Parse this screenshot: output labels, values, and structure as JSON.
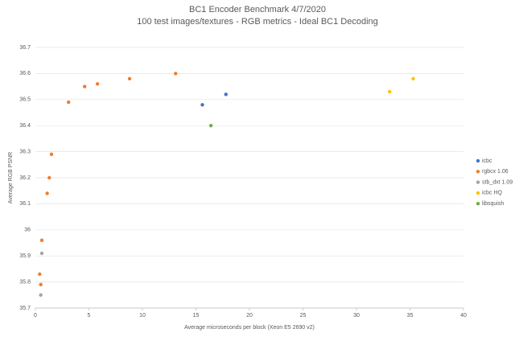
{
  "chart_data": {
    "type": "scatter",
    "title": "BC1 Encoder Benchmark 4/7/2020",
    "subtitle": "100 test images/textures - RGB metrics - Ideal BC1 Decoding",
    "x_label": "Average microseconds per block (Xeon E5 2690 v2)",
    "y_label": "Average RGB PSNR",
    "xlim": [
      0,
      40
    ],
    "xticks": [
      0,
      5,
      10,
      15,
      20,
      25,
      30,
      35,
      40
    ],
    "ylim": [
      35.7,
      36.7
    ],
    "yticks": [
      35.7,
      35.8,
      35.9,
      36,
      36.1,
      36.2,
      36.3,
      36.4,
      36.5,
      36.6,
      36.7
    ],
    "grid": true,
    "legend": "right",
    "series": [
      {
        "name": "icbc",
        "color": "#4472c4",
        "x": [
          15.6,
          17.8
        ],
        "values": [
          36.48,
          36.52
        ]
      },
      {
        "name": "rgbcx 1.06",
        "color": "#ed7d31",
        "x": [
          0.5,
          0.4,
          0.6,
          1.1,
          1.3,
          1.5,
          3.1,
          4.6,
          5.8,
          8.8,
          13.1
        ],
        "values": [
          35.79,
          35.83,
          35.96,
          36.14,
          36.2,
          36.29,
          36.49,
          36.55,
          36.56,
          36.58,
          36.6
        ]
      },
      {
        "name": "stb_dxt 1.09",
        "color": "#a5a5a5",
        "x": [
          0.6,
          0.5
        ],
        "values": [
          35.91,
          35.75
        ]
      },
      {
        "name": "icbc HQ",
        "color": "#ffc000",
        "x": [
          33.1,
          35.3
        ],
        "values": [
          36.53,
          36.58
        ]
      },
      {
        "name": "libsquish",
        "color": "#70ad47",
        "x": [
          16.4
        ],
        "values": [
          36.4
        ]
      }
    ]
  }
}
